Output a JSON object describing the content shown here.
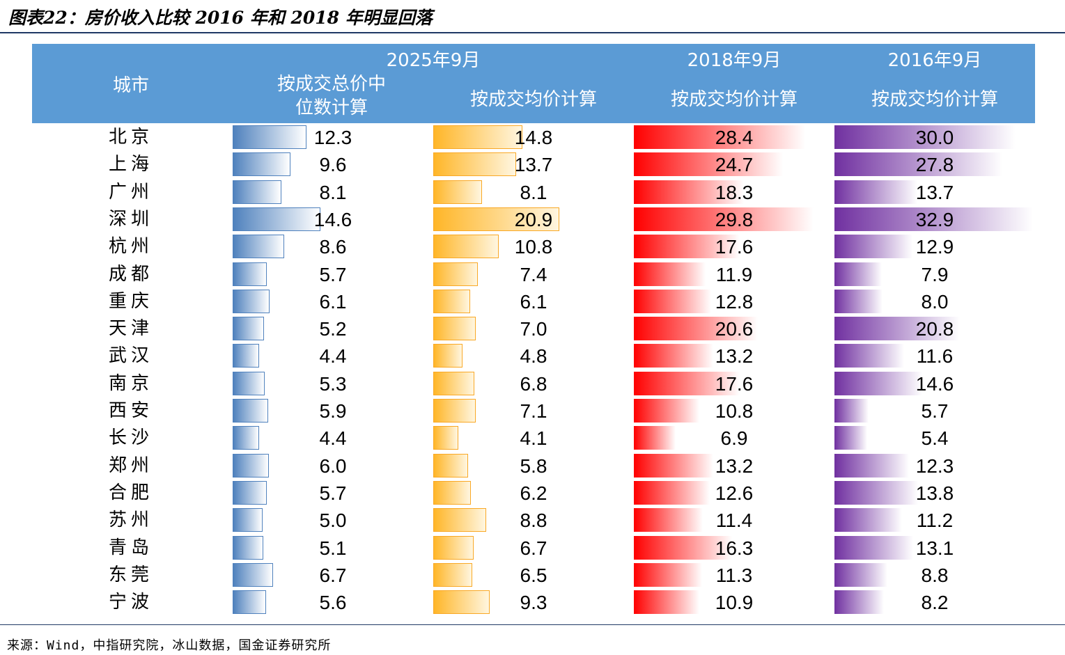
{
  "figure_title": "图表22：房价收入比较 2016 年和 2018 年明显回落",
  "source": "来源：Wind，中指研究院，冰山数据，国金证券研究所",
  "header": {
    "city": "城市",
    "group_2025": "2025年9月",
    "group_2018": "2018年9月",
    "group_2016": "2016年9月",
    "col_median": "按成交总价中位数计算",
    "col_avg_2025": "按成交均价计算",
    "col_avg_2018": "按成交均价计算",
    "col_avg_2016": "按成交均价计算"
  },
  "colors": {
    "header_bg": "#5b9bd5",
    "blue": "#4f81bd",
    "orange": "#ffb628",
    "red": "#ff0000",
    "purple": "#7030a0"
  },
  "chart_data": {
    "type": "table",
    "title": "房价收入比较 2016 年和 2018 年明显回落",
    "categories": [
      "北京",
      "上海",
      "广州",
      "深圳",
      "杭州",
      "成都",
      "重庆",
      "天津",
      "武汉",
      "南京",
      "西安",
      "长沙",
      "郑州",
      "合肥",
      "苏州",
      "青岛",
      "东莞",
      "宁波"
    ],
    "series": [
      {
        "name": "2025年9月 按成交总价中位数计算",
        "values": [
          "12.3",
          "9.6",
          "8.1",
          "14.6",
          "8.6",
          "5.7",
          "6.1",
          "5.2",
          "4.4",
          "5.3",
          "5.9",
          "4.4",
          "6.0",
          "5.7",
          "5.0",
          "5.1",
          "6.7",
          "5.6"
        ]
      },
      {
        "name": "2025年9月 按成交均价计算",
        "values": [
          "14.8",
          "13.7",
          "8.1",
          "20.9",
          "10.8",
          "7.4",
          "6.1",
          "7.0",
          "4.8",
          "6.8",
          "7.1",
          "4.1",
          "5.8",
          "6.2",
          "8.8",
          "6.7",
          "6.5",
          "9.3"
        ]
      },
      {
        "name": "2018年9月 按成交均价计算",
        "values": [
          "28.4",
          "24.7",
          "18.3",
          "29.8",
          "17.6",
          "11.9",
          "12.8",
          "20.6",
          "13.2",
          "17.6",
          "10.8",
          "6.9",
          "13.2",
          "12.6",
          "11.4",
          "16.3",
          "11.3",
          "10.9"
        ]
      },
      {
        "name": "2016年9月 按成交均价计算",
        "values": [
          "30.0",
          "27.8",
          "13.7",
          "32.9",
          "12.9",
          "7.9",
          "8.0",
          "20.8",
          "11.6",
          "14.6",
          "5.7",
          "5.4",
          "12.3",
          "13.8",
          "11.2",
          "13.1",
          "8.8",
          "8.2"
        ]
      }
    ]
  }
}
